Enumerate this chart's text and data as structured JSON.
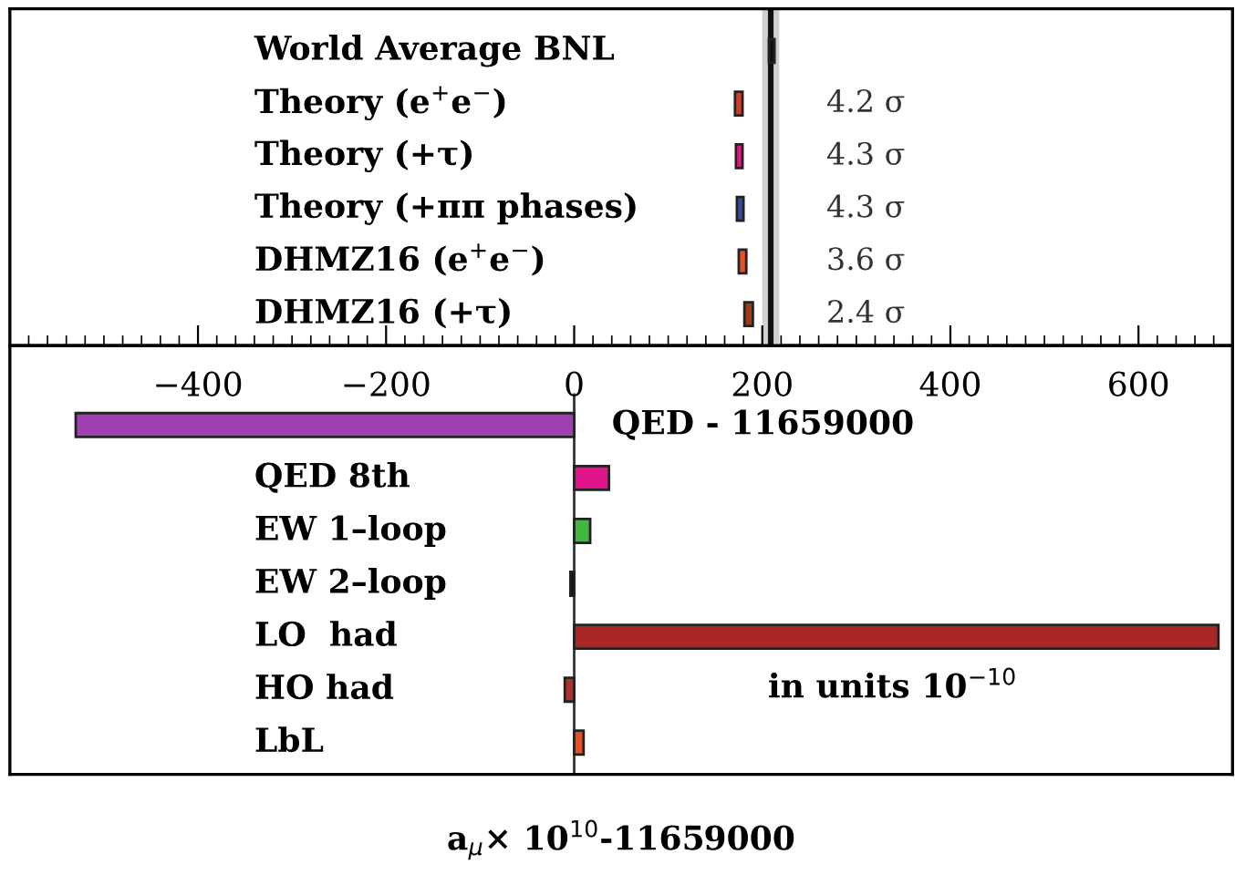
{
  "chart_data": [
    {
      "type": "bar",
      "orientation": "horizontal",
      "categories": [
        "World Average BNL",
        "Theory (e$^{+}$e$^{−}$)",
        "Theory (+τ)",
        "Theory (+ππ phases)",
        "DHMZ16 (e$^{+}$e$^{−}$)",
        "DHMZ16 (+τ)"
      ],
      "base": [
        207,
        171,
        172,
        173,
        175,
        181
      ],
      "values": [
        6,
        8,
        7,
        7,
        8,
        9
      ],
      "colors": [
        "#111111",
        "#d83a2a",
        "#e0197f",
        "#3a4aa0",
        "#e8502a",
        "#a03a10"
      ],
      "annotations": [
        "4.2 σ",
        "4.3 σ",
        "4.3 σ",
        "3.6 σ",
        "2.4 σ"
      ],
      "ref_lines": [
        {
          "axis": "x",
          "value": 209,
          "label": null,
          "color": "#111111"
        }
      ],
      "bands": [
        {
          "axis": "x",
          "from": 200,
          "to": 218,
          "label": null,
          "color": "#d0d0d0"
        }
      ],
      "xlim": [
        -600,
        700
      ],
      "xticks": [
        -400,
        -200,
        0,
        200,
        400,
        600,
        {
          "value": -580,
          "label": null
        },
        {
          "value": -560,
          "label": null
        },
        {
          "value": -540,
          "label": null
        },
        {
          "value": -520,
          "label": null
        },
        {
          "value": -500,
          "label": null
        },
        {
          "value": -480,
          "label": null
        },
        {
          "value": -460,
          "label": null
        },
        {
          "value": -440,
          "label": null
        },
        {
          "value": -420,
          "label": null
        },
        {
          "value": -380,
          "label": null
        },
        {
          "value": -360,
          "label": null
        },
        {
          "value": -340,
          "label": null
        },
        {
          "value": -320,
          "label": null
        },
        {
          "value": -300,
          "label": null
        },
        {
          "value": -280,
          "label": null
        },
        {
          "value": -260,
          "label": null
        },
        {
          "value": -240,
          "label": null
        },
        {
          "value": -220,
          "label": null
        },
        {
          "value": -180,
          "label": null
        },
        {
          "value": -160,
          "label": null
        },
        {
          "value": -140,
          "label": null
        },
        {
          "value": -120,
          "label": null
        },
        {
          "value": -100,
          "label": null
        },
        {
          "value": -80,
          "label": null
        },
        {
          "value": -60,
          "label": null
        },
        {
          "value": -40,
          "label": null
        },
        {
          "value": -20,
          "label": null
        },
        {
          "value": 20,
          "label": null
        },
        {
          "value": 40,
          "label": null
        },
        {
          "value": 60,
          "label": null
        },
        {
          "value": 80,
          "label": null
        },
        {
          "value": 100,
          "label": null
        },
        {
          "value": 120,
          "label": null
        },
        {
          "value": 140,
          "label": null
        },
        {
          "value": 160,
          "label": null
        },
        {
          "value": 180,
          "label": null
        },
        {
          "value": 220,
          "label": null
        },
        {
          "value": 240,
          "label": null
        },
        {
          "value": 260,
          "label": null
        },
        {
          "value": 280,
          "label": null
        },
        {
          "value": 300,
          "label": null
        },
        {
          "value": 320,
          "label": null
        },
        {
          "value": 340,
          "label": null
        },
        {
          "value": 360,
          "label": null
        },
        {
          "value": 380,
          "label": null
        },
        {
          "value": 420,
          "label": null
        },
        {
          "value": 440,
          "label": null
        },
        {
          "value": 460,
          "label": null
        },
        {
          "value": 480,
          "label": null
        },
        {
          "value": 500,
          "label": null
        },
        {
          "value": 520,
          "label": null
        },
        {
          "value": 540,
          "label": null
        },
        {
          "value": 560,
          "label": null
        },
        {
          "value": 580,
          "label": null
        },
        {
          "value": 620,
          "label": null
        },
        {
          "value": 640,
          "label": null
        },
        {
          "value": 660,
          "label": null
        },
        {
          "value": 680,
          "label": null
        }
      ],
      "grid": false,
      "legend": false
    },
    {
      "type": "bar",
      "orientation": "horizontal",
      "categories": [
        "QED - 11659000",
        "QED 8th",
        "EW 1–loop",
        "EW 2–loop",
        "LO  had",
        "HO had",
        "LbL"
      ],
      "values": [
        -530,
        37,
        17,
        -4,
        685,
        -10,
        10
      ],
      "colors": [
        "#a040b0",
        "#e0158a",
        "#40b840",
        "#111111",
        "#a82828",
        "#b03030",
        "#e85020"
      ],
      "ref_lines": [
        {
          "axis": "x",
          "value": 0,
          "label": null,
          "color": "#333333"
        }
      ],
      "annotations": [
        "in units 10$^{−10}$"
      ],
      "xlabel": "a$_{μ}$× 10$^{10}$-11659000",
      "xlim": [
        -600,
        700
      ],
      "grid": false,
      "legend": false
    }
  ]
}
